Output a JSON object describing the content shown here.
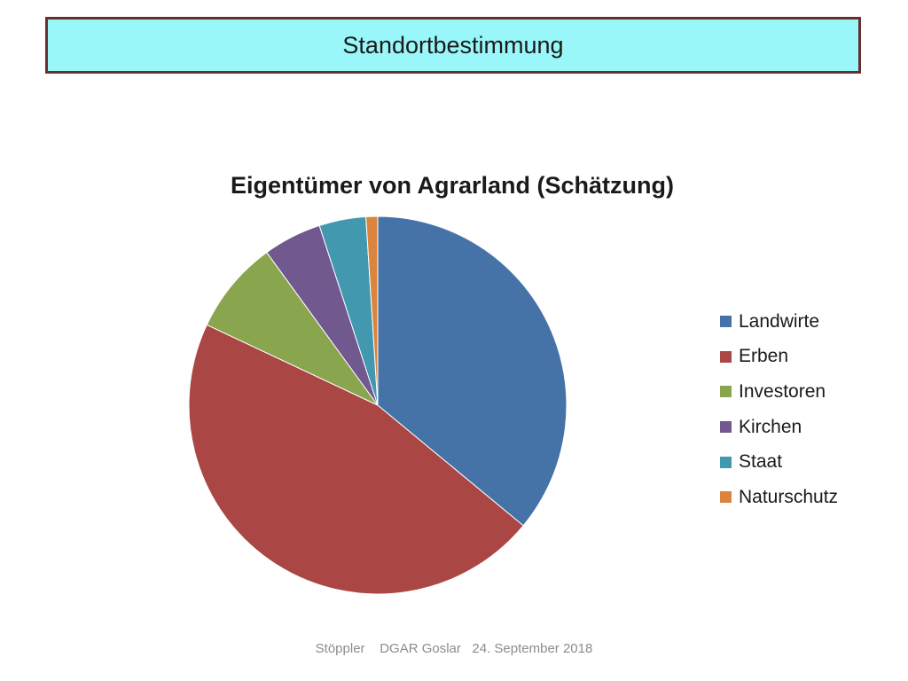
{
  "slide": {
    "title": "Standortbestimmung",
    "footer": "Stöppler    DGAR Goslar   24. September 2018"
  },
  "chart_data": {
    "type": "pie",
    "title": "Eigentümer von Agrarland (Schätzung)",
    "legend_position": "right",
    "categories": [
      "Landwirte",
      "Erben",
      "Investoren",
      "Kirchen",
      "Staat",
      "Naturschutz"
    ],
    "values": [
      36,
      46,
      8,
      5,
      4,
      1
    ],
    "colors": [
      "#4572a7",
      "#aa4643",
      "#89a54e",
      "#71588f",
      "#4198af",
      "#db843d"
    ]
  }
}
